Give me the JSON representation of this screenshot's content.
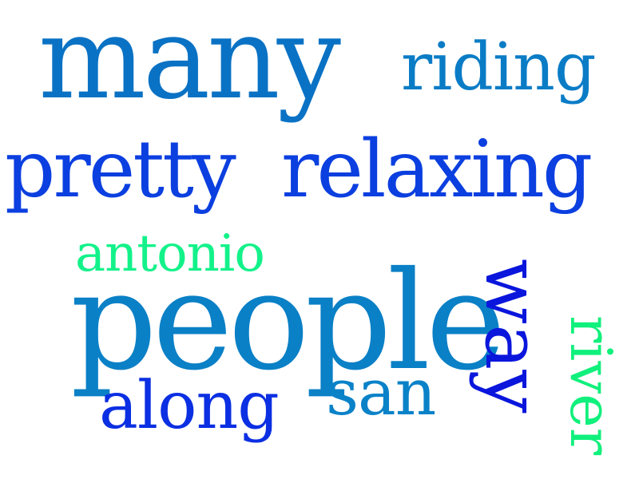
{
  "word_cloud": {
    "words": [
      {
        "id": "many",
        "text": "many",
        "color": "#0a72c4"
      },
      {
        "id": "riding",
        "text": "riding",
        "color": "#0a7cc6"
      },
      {
        "id": "pretty",
        "text": "pretty",
        "color": "#0b3fe0"
      },
      {
        "id": "relaxing",
        "text": "relaxing",
        "color": "#0b3fe0"
      },
      {
        "id": "antonio",
        "text": "antonio",
        "color": "#13f28a"
      },
      {
        "id": "people",
        "text": "people",
        "color": "#0a80c6"
      },
      {
        "id": "along",
        "text": "along",
        "color": "#0b2fe2"
      },
      {
        "id": "san",
        "text": "san",
        "color": "#0a82c8"
      },
      {
        "id": "way",
        "text": "way",
        "color": "#0a16dc",
        "orientation": "vertical"
      },
      {
        "id": "river",
        "text": "river",
        "color": "#10f07c",
        "orientation": "vertical"
      }
    ]
  }
}
